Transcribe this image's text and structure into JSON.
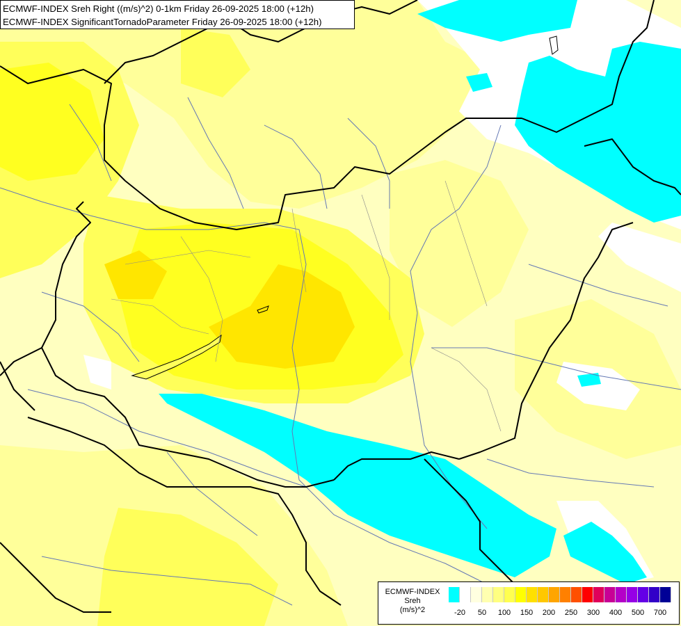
{
  "header": {
    "line1": "ECMWF-INDEX Sreh Right ((m/s)^2) 0-1km Friday 26-09-2025 18:00 (+12h)",
    "line2": "ECMWF-INDEX SignificantTornadoParameter Friday 26-09-2025 18:00 (+12h)"
  },
  "legend": {
    "label1": "ECMWF-INDEX",
    "label2": "Sreh",
    "label3": "(m/s)^2",
    "colors": [
      "#00ffff",
      "#ffffff",
      "#ffffe0",
      "#ffffb0",
      "#ffff80",
      "#ffff50",
      "#ffff00",
      "#ffe000",
      "#ffc800",
      "#ffa500",
      "#ff8000",
      "#ff5000",
      "#ff0000",
      "#e0005a",
      "#c80096",
      "#b400c8",
      "#9600e6",
      "#6400e6",
      "#3200c8",
      "#000096"
    ],
    "ticks": [
      "-20",
      "50",
      "100",
      "150",
      "200",
      "250",
      "300",
      "400",
      "500",
      "700"
    ]
  },
  "colors": {
    "cyan": "#00ffff",
    "white": "#ffffff",
    "pale": "#ffffc0",
    "light_yellow": "#ffff9a",
    "yellow": "#ffff5a",
    "bright_yellow": "#ffff20",
    "gold": "#ffe600",
    "border": "#000000",
    "river": "#6478b4"
  }
}
